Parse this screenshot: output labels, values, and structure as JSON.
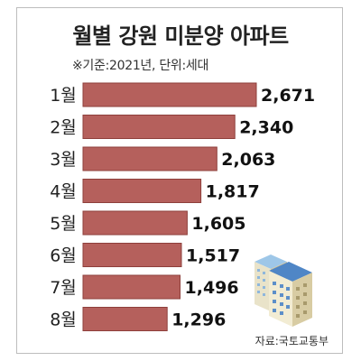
{
  "chart_data": {
    "type": "bar",
    "orientation": "horizontal",
    "title": "월별 강원 미분양 아파트",
    "subtitle": "※기준:2021년, 단위:세대",
    "source": "자료:국토교통부",
    "categories": [
      "1월",
      "2월",
      "3월",
      "4월",
      "5월",
      "6월",
      "7월",
      "8월"
    ],
    "values": [
      2671,
      2340,
      2063,
      1817,
      1605,
      1517,
      1496,
      1296
    ],
    "value_labels": [
      "2,671",
      "2,340",
      "2,063",
      "1,817",
      "1,605",
      "1,517",
      "1,496",
      "1,296"
    ],
    "xlim": [
      0,
      2671
    ],
    "grid": false,
    "bar_color": "#b5605c",
    "bar_edge_color": "#8e3f3b"
  }
}
